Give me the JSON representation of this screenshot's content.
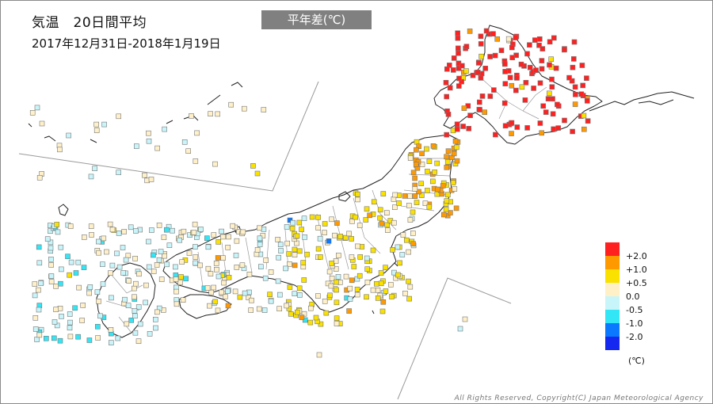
{
  "title": "気温　20日間平均",
  "period": "2017年12月31日-2018年1月19日",
  "mode_badge": "平年差(℃)",
  "unit": "(℃)",
  "copyright": "All Rights Reserved, Copyright(C) Japan Meteorological Agency",
  "legend": [
    {
      "label": "+2.0",
      "color": "#ff2020"
    },
    {
      "label": "+1.0",
      "color": "#ff9900"
    },
    {
      "label": "+0.5",
      "color": "#fae100"
    },
    {
      "label": "0.0",
      "color": "#fff0c8"
    },
    {
      "label": "-0.5",
      "color": "#c8f5fa"
    },
    {
      "label": "-1.0",
      "color": "#32e6f5"
    },
    {
      "label": "-2.0",
      "color": "#0a78ff"
    },
    {
      "label": "",
      "color": "#1428f0"
    }
  ],
  "colors": {
    "frame": "#8a8a8a",
    "coast": "#222222",
    "boundary": "#9a9a9a",
    "station_border": "#777777"
  }
}
